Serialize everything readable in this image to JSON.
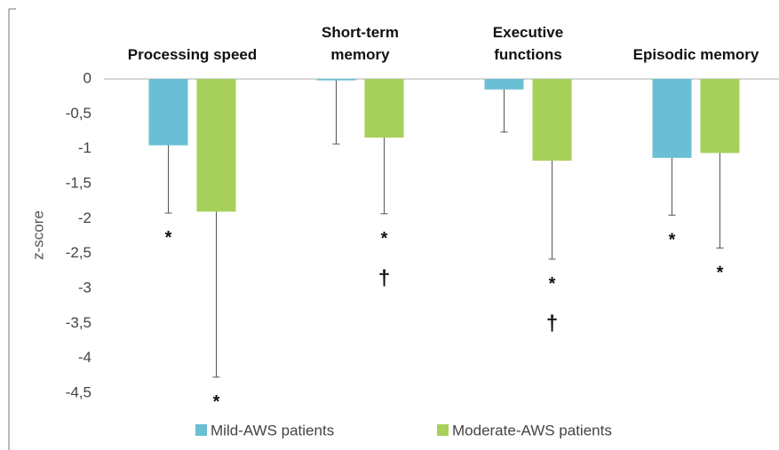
{
  "chart_data": {
    "type": "bar",
    "categories": [
      "Processing speed",
      "Short-term\nmemory",
      "Executive\nfunctions",
      "Episodic memory"
    ],
    "series": [
      {
        "name": "Mild-AWS patients",
        "color": "#6bbfd4",
        "values": [
          -0.95,
          -0.02,
          -0.15,
          -1.13
        ],
        "errors": [
          0.97,
          0.91,
          0.61,
          0.82
        ],
        "annotations": [
          [
            "*"
          ],
          null,
          null,
          [
            "*"
          ]
        ]
      },
      {
        "name": "Moderate-AWS patients",
        "color": "#a6d05a",
        "values": [
          -1.9,
          -0.84,
          -1.17,
          -1.06
        ],
        "errors": [
          2.37,
          1.09,
          1.41,
          1.36
        ],
        "annotations": [
          [
            "*"
          ],
          [
            "*",
            "†"
          ],
          [
            "*",
            "†"
          ],
          [
            "*"
          ]
        ]
      }
    ],
    "ylabel": "z-score",
    "ylim": [
      -4.5,
      0
    ],
    "yticks": [
      0,
      {
        "value": -0.5,
        "label": "-0,5"
      },
      -1,
      {
        "value": -1.5,
        "label": "-1,5"
      },
      -2,
      {
        "value": -2.5,
        "label": "-2,5"
      },
      -3,
      {
        "value": -3.5,
        "label": "-3,5"
      },
      -4,
      {
        "value": -4.5,
        "label": "-4,5"
      }
    ],
    "legend": "bottom"
  }
}
